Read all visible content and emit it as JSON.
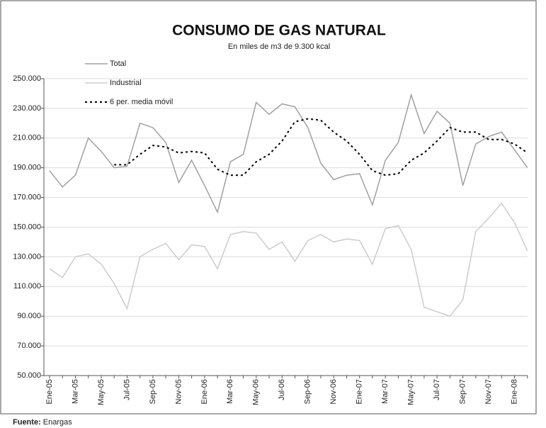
{
  "chart_data": {
    "type": "line",
    "title": "CONSUMO DE GAS NATURAL",
    "subtitle": "En miles de m3 de 9.300 kcal",
    "categories": [
      "Ene-05",
      null,
      "Mar-05",
      null,
      "May-05",
      null,
      "Jul-05",
      null,
      "Sep-05",
      null,
      "Nov-05",
      null,
      "Ene-06",
      null,
      "Mar-06",
      null,
      "May-06",
      null,
      "Jul-06",
      null,
      "Sep-06",
      null,
      "Nov-06",
      null,
      "Ene-07",
      null,
      "Mar-07",
      null,
      "May-07",
      null,
      "Jul-07",
      null,
      "Sep-07",
      null,
      "Nov-07",
      null,
      "Ene-08",
      null
    ],
    "series": [
      {
        "name": "Total",
        "color": "#a0a0a0",
        "style": "solid",
        "values": [
          188000,
          177000,
          185000,
          210000,
          201000,
          190000,
          191000,
          220000,
          217000,
          207000,
          180000,
          195000,
          178000,
          160000,
          194000,
          199000,
          234000,
          226000,
          233000,
          231000,
          217000,
          193000,
          182000,
          185000,
          186000,
          165000,
          195000,
          207000,
          239000,
          213000,
          228000,
          220000,
          178000,
          206000,
          211000,
          214000,
          202000,
          190000
        ]
      },
      {
        "name": "Industrial",
        "color": "#cccccc",
        "style": "solid",
        "values": [
          122000,
          116000,
          130000,
          132000,
          125000,
          112000,
          95000,
          130000,
          135000,
          139000,
          128000,
          138000,
          137000,
          122000,
          145000,
          147000,
          146000,
          135000,
          140000,
          127000,
          141000,
          145000,
          140000,
          142000,
          141000,
          125000,
          149000,
          151000,
          135000,
          96000,
          93000,
          90000,
          101000,
          147000,
          156000,
          166000,
          153000,
          134000
        ]
      },
      {
        "name": "6 per. media móvil",
        "color": "#000000",
        "style": "dotted",
        "values": [
          null,
          null,
          null,
          null,
          null,
          192000,
          192000,
          199000,
          205000,
          204000,
          200000,
          201000,
          200000,
          189000,
          185000,
          185000,
          194000,
          199000,
          208000,
          221000,
          223000,
          222000,
          214000,
          208000,
          199000,
          188000,
          185000,
          186000,
          195000,
          200000,
          208000,
          217000,
          214000,
          214000,
          209000,
          209000,
          206000,
          200000
        ]
      }
    ],
    "ylim": [
      50000,
      250000
    ],
    "yticks": [
      {
        "value": 50000,
        "label": "50.000"
      },
      {
        "value": 70000,
        "label": "70.000"
      },
      {
        "value": 90000,
        "label": "90.000"
      },
      {
        "value": 110000,
        "label": "110.000"
      },
      {
        "value": 130000,
        "label": "130.000"
      },
      {
        "value": 150000,
        "label": "150.000"
      },
      {
        "value": 170000,
        "label": "170.000"
      },
      {
        "value": 190000,
        "label": "190.000"
      },
      {
        "value": 210000,
        "label": "210.000"
      },
      {
        "value": 230000,
        "label": "230.000"
      },
      {
        "value": 250000,
        "label": "250.000"
      }
    ],
    "grid": true,
    "legend": "top-left",
    "source": {
      "label": "Fuente:",
      "text": "Enargas"
    }
  }
}
